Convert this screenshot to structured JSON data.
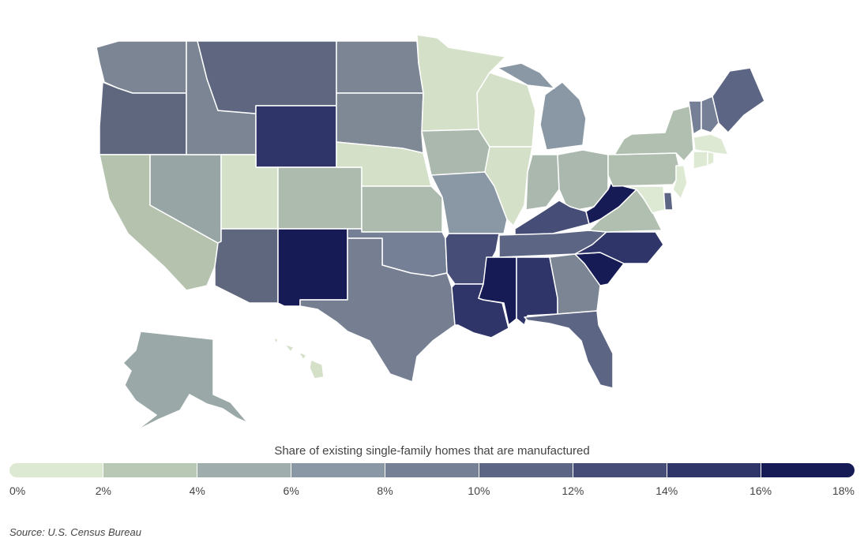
{
  "legend": {
    "title": "Share of existing single-family homes that are manufactured",
    "ticks": [
      "0%",
      "2%",
      "4%",
      "6%",
      "8%",
      "10%",
      "12%",
      "14%",
      "16%",
      "18%"
    ],
    "colors": [
      "#dde9d2",
      "#b9c8b4",
      "#9fadad",
      "#8a97a4",
      "#757f95",
      "#5d6584",
      "#464d76",
      "#2f3568",
      "#161b55"
    ]
  },
  "source": "Source: U.S. Census Bureau",
  "states": [
    {
      "abbr": "WA",
      "color": "#7b8594"
    },
    {
      "abbr": "OR",
      "color": "#5f677f"
    },
    {
      "abbr": "CA",
      "color": "#b4c2ae"
    },
    {
      "abbr": "NV",
      "color": "#97a5a4"
    },
    {
      "abbr": "ID",
      "color": "#7b8594"
    },
    {
      "abbr": "MT",
      "color": "#5e6680"
    },
    {
      "abbr": "WY",
      "color": "#2f3568"
    },
    {
      "abbr": "UT",
      "color": "#d4e0c8"
    },
    {
      "abbr": "CO",
      "color": "#adbbae"
    },
    {
      "abbr": "AZ",
      "color": "#5f677f"
    },
    {
      "abbr": "NM",
      "color": "#161b55"
    },
    {
      "abbr": "ND",
      "color": "#7b8594"
    },
    {
      "abbr": "SD",
      "color": "#7f8996"
    },
    {
      "abbr": "NE",
      "color": "#d4e0c8"
    },
    {
      "abbr": "KS",
      "color": "#adbbae"
    },
    {
      "abbr": "OK",
      "color": "#757f95"
    },
    {
      "abbr": "TX",
      "color": "#767f92"
    },
    {
      "abbr": "MN",
      "color": "#d4e0c8"
    },
    {
      "abbr": "IA",
      "color": "#aab8ae"
    },
    {
      "abbr": "MO",
      "color": "#8a97a4"
    },
    {
      "abbr": "AR",
      "color": "#464d76"
    },
    {
      "abbr": "LA",
      "color": "#2f3568"
    },
    {
      "abbr": "WI",
      "color": "#d4e0c8"
    },
    {
      "abbr": "IL",
      "color": "#d4e0c8"
    },
    {
      "abbr": "MS",
      "color": "#161b55"
    },
    {
      "abbr": "MI",
      "color": "#8a97a4"
    },
    {
      "abbr": "IN",
      "color": "#aab8ae"
    },
    {
      "abbr": "KY",
      "color": "#464d76"
    },
    {
      "abbr": "TN",
      "color": "#5d6584"
    },
    {
      "abbr": "AL",
      "color": "#2f3568"
    },
    {
      "abbr": "OH",
      "color": "#aab8ae"
    },
    {
      "abbr": "GA",
      "color": "#7b8594"
    },
    {
      "abbr": "FL",
      "color": "#5d6584"
    },
    {
      "abbr": "SC",
      "color": "#161b55"
    },
    {
      "abbr": "NC",
      "color": "#2f3568"
    },
    {
      "abbr": "VA",
      "color": "#b1bfb0"
    },
    {
      "abbr": "WV",
      "color": "#161b55"
    },
    {
      "abbr": "PA",
      "color": "#b1bfb0"
    },
    {
      "abbr": "NY",
      "color": "#b1bfb0"
    },
    {
      "abbr": "VT",
      "color": "#757f95"
    },
    {
      "abbr": "NH",
      "color": "#757f95"
    },
    {
      "abbr": "ME",
      "color": "#5d6584"
    },
    {
      "abbr": "MA",
      "color": "#dde9d2"
    },
    {
      "abbr": "CT",
      "color": "#dde9d2"
    },
    {
      "abbr": "RI",
      "color": "#dde9d2"
    },
    {
      "abbr": "NJ",
      "color": "#dde9d2"
    },
    {
      "abbr": "DE",
      "color": "#5d6584"
    },
    {
      "abbr": "MD",
      "color": "#dde9d2"
    },
    {
      "abbr": "AK",
      "color": "#9aa8a8"
    },
    {
      "abbr": "HI",
      "color": "#d4e0c8"
    }
  ]
}
